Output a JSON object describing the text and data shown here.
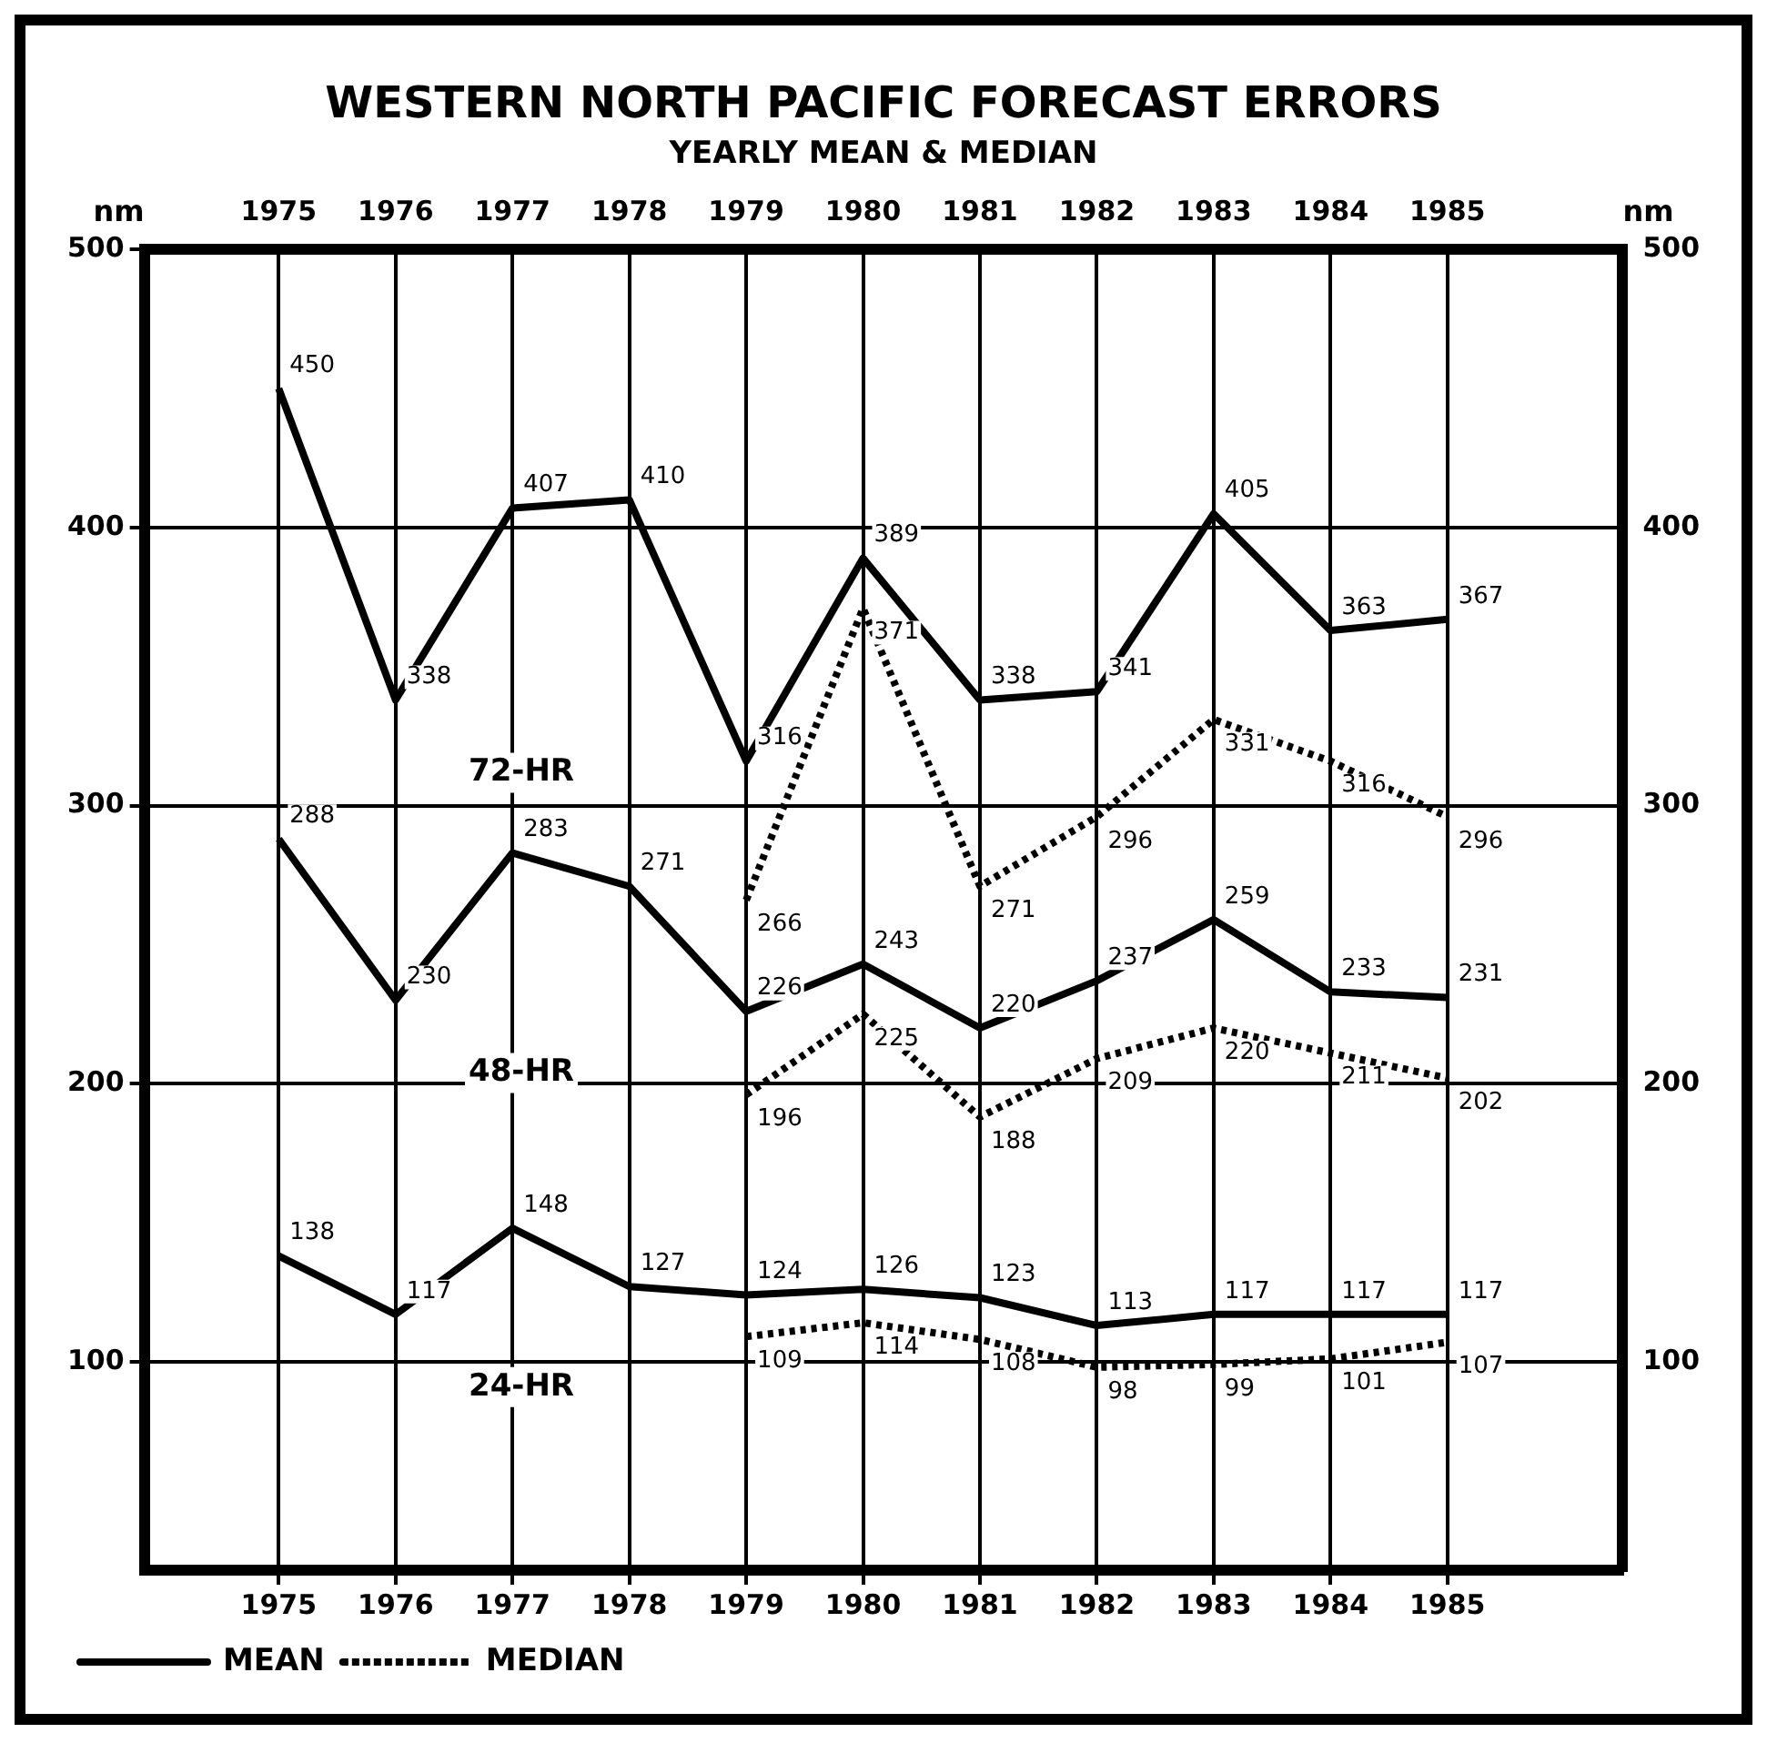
{
  "chart_data": {
    "type": "line",
    "title": "WESTERN NORTH PACIFIC FORECAST ERRORS",
    "subtitle": "YEARLY MEAN & MEDIAN",
    "ylabel": "nm",
    "y2label": "nm",
    "x": [
      1975,
      1976,
      1977,
      1978,
      1979,
      1980,
      1981,
      1982,
      1983,
      1984,
      1985
    ],
    "series": [
      {
        "name": "MEAN",
        "color": "#000000",
        "line_style": "solid",
        "values": [
          450,
          338,
          407,
          410,
          316,
          389,
          338,
          341,
          405,
          363,
          367
        ]
      },
      {
        "name": "MEDIAN",
        "color": "#000000",
        "line_style": "dotted",
        "values": [
          null,
          null,
          null,
          null,
          266,
          371,
          271,
          296,
          331,
          316,
          296
        ]
      },
      {
        "color": "#000000",
        "line_style": "solid",
        "values": [
          288,
          230,
          283,
          271,
          226,
          243,
          220,
          237,
          259,
          233,
          231
        ]
      },
      {
        "color": "#000000",
        "line_style": "dotted",
        "values": [
          null,
          null,
          null,
          null,
          196,
          225,
          188,
          209,
          220,
          211,
          202
        ]
      },
      {
        "color": "#000000",
        "line_style": "solid",
        "values": [
          138,
          117,
          148,
          127,
          124,
          126,
          123,
          113,
          117,
          117,
          117
        ]
      },
      {
        "color": "#000000",
        "line_style": "dotted",
        "values": [
          null,
          null,
          null,
          null,
          109,
          114,
          108,
          98,
          99,
          101,
          107
        ]
      }
    ],
    "annotations": [
      "72-HR",
      "48-HR",
      "24-HR"
    ],
    "xlim": [
      1973.85,
      1986.5
    ],
    "xticks": [
      1975,
      1976,
      1977,
      1978,
      1979,
      1980,
      1981,
      1982,
      1983,
      1984,
      1985
    ],
    "x2lim": [
      1973.85,
      1986.5
    ],
    "x2ticks": [
      1975,
      1976,
      1977,
      1978,
      1979,
      1980,
      1981,
      1982,
      1983,
      1984,
      1985
    ],
    "ylim": [
      25,
      500
    ],
    "yticks": [
      100,
      200,
      300,
      400,
      500
    ],
    "y2lim": [
      25,
      500
    ],
    "y2ticks": [
      100,
      200,
      300,
      400,
      500
    ],
    "grid": true,
    "legend": "bottom",
    "data_labels": true
  }
}
